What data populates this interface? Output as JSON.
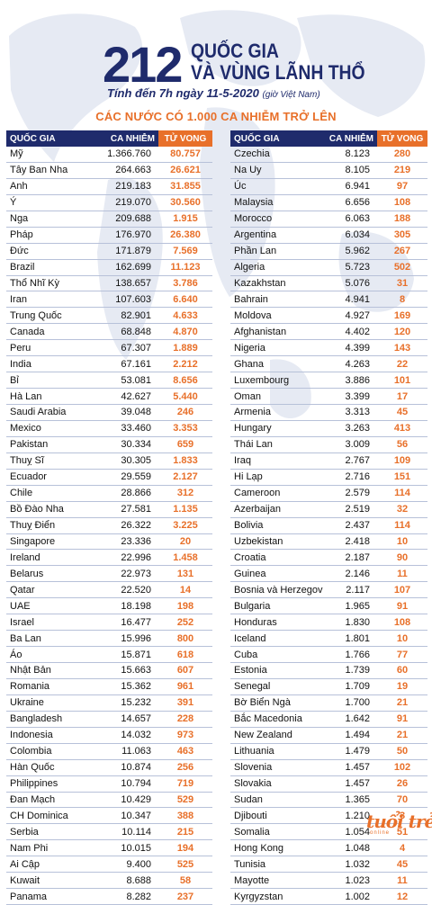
{
  "header": {
    "big_number": "212",
    "title_line1": "QUỐC GIA",
    "title_line2": "VÀ VÙNG LÃNH THỔ",
    "date_text": "Tính đến 7h ngày 11-5-2020",
    "date_note": "(giờ Việt Nam)"
  },
  "section_title": "CÁC NƯỚC CÓ 1.000 CA NHIỄM TRỞ LÊN",
  "columns": {
    "country": "QUỐC GIA",
    "cases": "CA NHIỄM",
    "deaths": "TỬ VONG"
  },
  "left_rows": [
    [
      "Mỹ",
      "1.366.760",
      "80.757"
    ],
    [
      "Tây Ban Nha",
      "264.663",
      "26.621"
    ],
    [
      "Anh",
      "219.183",
      "31.855"
    ],
    [
      "Ý",
      "219.070",
      "30.560"
    ],
    [
      "Nga",
      "209.688",
      "1.915"
    ],
    [
      "Pháp",
      "176.970",
      "26.380"
    ],
    [
      "Đức",
      "171.879",
      "7.569"
    ],
    [
      "Brazil",
      "162.699",
      "11.123"
    ],
    [
      "Thổ Nhĩ Kỳ",
      "138.657",
      "3.786"
    ],
    [
      "Iran",
      "107.603",
      "6.640"
    ],
    [
      "Trung Quốc",
      "82.901",
      "4.633"
    ],
    [
      "Canada",
      "68.848",
      "4.870"
    ],
    [
      "Peru",
      "67.307",
      "1.889"
    ],
    [
      "India",
      "67.161",
      "2.212"
    ],
    [
      "Bỉ",
      "53.081",
      "8.656"
    ],
    [
      "Hà Lan",
      "42.627",
      "5.440"
    ],
    [
      "Saudi Arabia",
      "39.048",
      "246"
    ],
    [
      "Mexico",
      "33.460",
      "3.353"
    ],
    [
      "Pakistan",
      "30.334",
      "659"
    ],
    [
      "Thuỵ Sĩ",
      "30.305",
      "1.833"
    ],
    [
      "Ecuador",
      "29.559",
      "2.127"
    ],
    [
      "Chile",
      "28.866",
      "312"
    ],
    [
      "Bồ Đào Nha",
      "27.581",
      "1.135"
    ],
    [
      "Thuỵ Điển",
      "26.322",
      "3.225"
    ],
    [
      "Singapore",
      "23.336",
      "20"
    ],
    [
      "Ireland",
      "22.996",
      "1.458"
    ],
    [
      "Belarus",
      "22.973",
      "131"
    ],
    [
      "Qatar",
      "22.520",
      "14"
    ],
    [
      "UAE",
      "18.198",
      "198"
    ],
    [
      "Israel",
      "16.477",
      "252"
    ],
    [
      "Ba Lan",
      "15.996",
      "800"
    ],
    [
      "Áo",
      "15.871",
      "618"
    ],
    [
      "Nhật Bản",
      "15.663",
      "607"
    ],
    [
      "Romania",
      "15.362",
      "961"
    ],
    [
      "Ukraine",
      "15.232",
      "391"
    ],
    [
      "Bangladesh",
      "14.657",
      "228"
    ],
    [
      "Indonesia",
      "14.032",
      "973"
    ],
    [
      "Colombia",
      "11.063",
      "463"
    ],
    [
      "Hàn Quốc",
      "10.874",
      "256"
    ],
    [
      "Philippines",
      "10.794",
      "719"
    ],
    [
      "Đan Mạch",
      "10.429",
      "529"
    ],
    [
      "CH Dominica",
      "10.347",
      "388"
    ],
    [
      "Serbia",
      "10.114",
      "215"
    ],
    [
      "Nam Phi",
      "10.015",
      "194"
    ],
    [
      "Ai Cập",
      "9.400",
      "525"
    ],
    [
      "Kuwait",
      "8.688",
      "58"
    ],
    [
      "Panama",
      "8.282",
      "237"
    ]
  ],
  "right_rows": [
    [
      "Czechia",
      "8.123",
      "280"
    ],
    [
      "Na Uy",
      "8.105",
      "219"
    ],
    [
      "Úc",
      "6.941",
      "97"
    ],
    [
      "Malaysia",
      "6.656",
      "108"
    ],
    [
      "Morocco",
      "6.063",
      "188"
    ],
    [
      "Argentina",
      "6.034",
      "305"
    ],
    [
      "Phần Lan",
      "5.962",
      "267"
    ],
    [
      "Algeria",
      "5.723",
      "502"
    ],
    [
      "Kazakhstan",
      "5.076",
      "31"
    ],
    [
      "Bahrain",
      "4.941",
      "8"
    ],
    [
      "Moldova",
      "4.927",
      "169"
    ],
    [
      "Afghanistan",
      "4.402",
      "120"
    ],
    [
      "Nigeria",
      "4.399",
      "143"
    ],
    [
      "Ghana",
      "4.263",
      "22"
    ],
    [
      "Luxembourg",
      "3.886",
      "101"
    ],
    [
      "Oman",
      "3.399",
      "17"
    ],
    [
      "Armenia",
      "3.313",
      "45"
    ],
    [
      "Hungary",
      "3.263",
      "413"
    ],
    [
      "Thái Lan",
      "3.009",
      "56"
    ],
    [
      "Iraq",
      "2.767",
      "109"
    ],
    [
      "Hi Lạp",
      "2.716",
      "151"
    ],
    [
      "Cameroon",
      "2.579",
      "114"
    ],
    [
      "Azerbaijan",
      "2.519",
      "32"
    ],
    [
      "Bolivia",
      "2.437",
      "114"
    ],
    [
      "Uzbekistan",
      "2.418",
      "10"
    ],
    [
      "Croatia",
      "2.187",
      "90"
    ],
    [
      "Guinea",
      "2.146",
      "11"
    ],
    [
      "Bosnia và Herzegovina",
      "2.117",
      "107"
    ],
    [
      "Bulgaria",
      "1.965",
      "91"
    ],
    [
      "Honduras",
      "1.830",
      "108"
    ],
    [
      "Iceland",
      "1.801",
      "10"
    ],
    [
      "Cuba",
      "1.766",
      "77"
    ],
    [
      "Estonia",
      "1.739",
      "60"
    ],
    [
      "Senegal",
      "1.709",
      "19"
    ],
    [
      "Bờ Biển Ngà",
      "1.700",
      "21"
    ],
    [
      "Bắc Macedonia",
      "1.642",
      "91"
    ],
    [
      "New Zealand",
      "1.494",
      "21"
    ],
    [
      "Lithuania",
      "1.479",
      "50"
    ],
    [
      "Slovenia",
      "1.457",
      "102"
    ],
    [
      "Slovakia",
      "1.457",
      "26"
    ],
    [
      "Sudan",
      "1.365",
      "70"
    ],
    [
      "Djibouti",
      "1.210",
      "3"
    ],
    [
      "Somalia",
      "1.054",
      "51"
    ],
    [
      "Hong Kong",
      "1.048",
      "4"
    ],
    [
      "Tunisia",
      "1.032",
      "45"
    ],
    [
      "Mayotte",
      "1.023",
      "11"
    ],
    [
      "Kyrgyzstan",
      "1.002",
      "12"
    ]
  ],
  "logo": {
    "text": "tuổi trẻ",
    "sub": "online"
  },
  "colors": {
    "navy": "#1f2b6c",
    "orange": "#e8702a",
    "map": "#e3e8f2"
  }
}
